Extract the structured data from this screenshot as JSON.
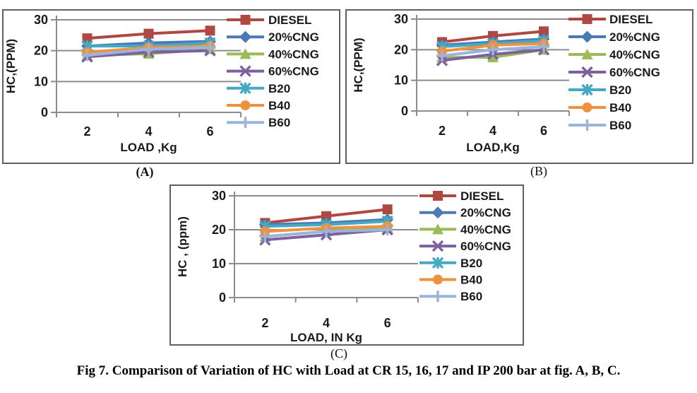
{
  "caption": "Fig 7. Comparison of Variation of HC with Load at CR 15, 16, 17 and IP 200 bar at fig. A, B, C.",
  "chart_data": [
    {
      "type": "line",
      "panel_label": "(A)",
      "title": "",
      "xlabel": "LOAD ,Kg",
      "ylabel": "HC,(PPM)",
      "categories": [
        "2",
        "4",
        "6"
      ],
      "ylim": [
        0,
        30
      ],
      "yticks": [
        0,
        10,
        20,
        30
      ],
      "grid": "horizontal",
      "legend_position": "right",
      "series": [
        {
          "name": "DIESEL",
          "marker": "square",
          "color": "#b04842",
          "values": [
            24,
            25.5,
            26.5
          ]
        },
        {
          "name": "20%CNG",
          "marker": "diamond",
          "color": "#4a7ab5",
          "values": [
            21.5,
            22.5,
            23
          ]
        },
        {
          "name": "40%CNG",
          "marker": "triangle",
          "color": "#9bbb59",
          "values": [
            18.5,
            19,
            20.5
          ]
        },
        {
          "name": "60%CNG",
          "marker": "x",
          "color": "#7d60a0",
          "values": [
            18,
            19.5,
            20
          ]
        },
        {
          "name": "B20",
          "marker": "asterisk",
          "color": "#45a9c4",
          "values": [
            21.5,
            21.5,
            22.5
          ]
        },
        {
          "name": "B40",
          "marker": "circle",
          "color": "#f0913d",
          "values": [
            19.5,
            21,
            21.5
          ]
        },
        {
          "name": "B60",
          "marker": "plus",
          "color": "#9ab5dc",
          "values": [
            18.5,
            20.5,
            21
          ]
        }
      ]
    },
    {
      "type": "line",
      "panel_label": "(B)",
      "title": "",
      "xlabel": "LOAD,Kg",
      "ylabel": "HC,(PPM)",
      "categories": [
        "2",
        "4",
        "6"
      ],
      "ylim": [
        0,
        30
      ],
      "yticks": [
        0,
        10,
        20,
        30
      ],
      "grid": "horizontal",
      "legend_position": "right",
      "series": [
        {
          "name": "DIESEL",
          "marker": "square",
          "color": "#b04842",
          "values": [
            22.5,
            24.5,
            26
          ]
        },
        {
          "name": "20%CNG",
          "marker": "diamond",
          "color": "#4a7ab5",
          "values": [
            21.5,
            22.5,
            23.5
          ]
        },
        {
          "name": "40%CNG",
          "marker": "triangle",
          "color": "#9bbb59",
          "values": [
            17.5,
            17.5,
            20
          ]
        },
        {
          "name": "60%CNG",
          "marker": "x",
          "color": "#7d60a0",
          "values": [
            16.5,
            18.5,
            20
          ]
        },
        {
          "name": "B20",
          "marker": "asterisk",
          "color": "#45a9c4",
          "values": [
            21,
            22,
            23
          ]
        },
        {
          "name": "B40",
          "marker": "circle",
          "color": "#f0913d",
          "values": [
            19.5,
            21.5,
            22
          ]
        },
        {
          "name": "B60",
          "marker": "plus",
          "color": "#9ab5dc",
          "values": [
            18,
            20,
            21
          ]
        }
      ]
    },
    {
      "type": "line",
      "panel_label": "(C)",
      "title": "",
      "xlabel": "LOAD, IN Kg",
      "ylabel": "HC , (ppm)",
      "categories": [
        "2",
        "4",
        "6"
      ],
      "ylim": [
        0,
        30
      ],
      "yticks": [
        0,
        10,
        20,
        30
      ],
      "grid": "horizontal",
      "legend_position": "right",
      "series": [
        {
          "name": "DIESEL",
          "marker": "square",
          "color": "#b04842",
          "values": [
            22,
            24,
            26
          ]
        },
        {
          "name": "20%CNG",
          "marker": "diamond",
          "color": "#4a7ab5",
          "values": [
            21.5,
            22,
            23
          ]
        },
        {
          "name": "40%CNG",
          "marker": "triangle",
          "color": "#9bbb59",
          "values": [
            18,
            19.5,
            20.5
          ]
        },
        {
          "name": "60%CNG",
          "marker": "x",
          "color": "#7d60a0",
          "values": [
            17,
            18.5,
            20
          ]
        },
        {
          "name": "B20",
          "marker": "asterisk",
          "color": "#45a9c4",
          "values": [
            21,
            21.5,
            22.5
          ]
        },
        {
          "name": "B40",
          "marker": "circle",
          "color": "#f0913d",
          "values": [
            19.5,
            20.5,
            21
          ]
        },
        {
          "name": "B60",
          "marker": "plus",
          "color": "#9ab5dc",
          "values": [
            18,
            19.5,
            20
          ]
        }
      ]
    }
  ],
  "style": {
    "grid_color": "#8c8c8c",
    "axis_color": "#8c8c8c",
    "text_color": "#1a1a1a",
    "frame_color": "#606060"
  }
}
